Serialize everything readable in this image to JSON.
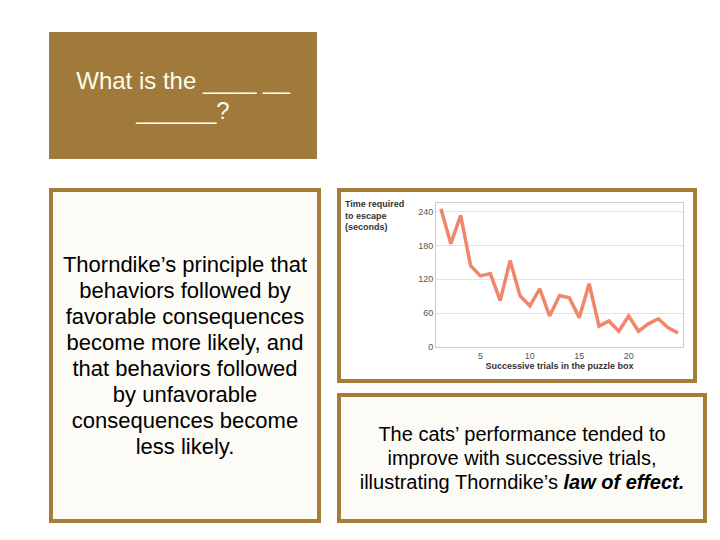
{
  "slide": {
    "question": "What is the ____ __ ______?",
    "definition": "Thorndike’s principle that behaviors followed by favorable consequences become more likely, and that behaviors followed by unfavorable consequences become less likely.",
    "caption": "The cats’ performance tended to improve with successive trials, illustrating Thorndike’s",
    "caption_emphasis": "law of effect."
  },
  "chart_data": {
    "type": "line",
    "x": [
      1,
      2,
      3,
      4,
      5,
      6,
      7,
      8,
      9,
      10,
      11,
      12,
      13,
      14,
      15,
      16,
      17,
      18,
      19,
      20,
      21,
      22,
      23,
      24,
      25
    ],
    "values": [
      245,
      183,
      233,
      144,
      126,
      130,
      82,
      153,
      91,
      73,
      103,
      55,
      91,
      87,
      52,
      112,
      37,
      46,
      28,
      55,
      28,
      41,
      50,
      34,
      25
    ],
    "color": "#f0876a",
    "x_label": "Successive trials in the puzzle box",
    "y_label": "Time required\nto escape\n(seconds)",
    "xlim": [
      0.5,
      25.5
    ],
    "xticks": [
      5,
      10,
      15,
      20
    ],
    "ylim": [
      0,
      255
    ],
    "yticks": [
      0,
      60,
      120,
      180,
      240
    ],
    "grid": true
  }
}
